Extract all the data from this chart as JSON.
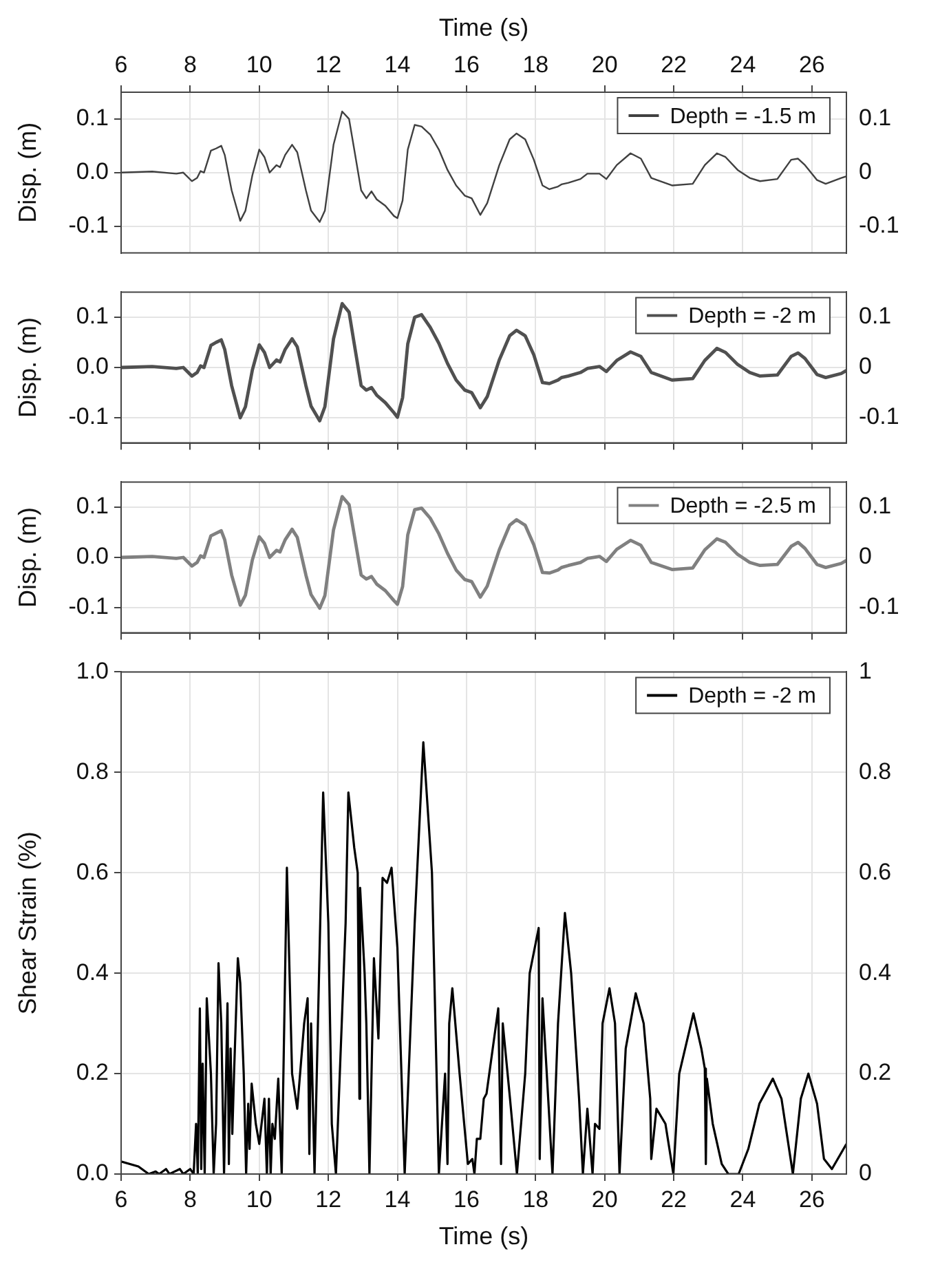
{
  "chart_data": [
    {
      "type": "line",
      "xlabel": "Time (s)",
      "ylabel": "Disp. (m)",
      "xlim": [
        6,
        27
      ],
      "xticks": [
        6,
        8,
        10,
        12,
        14,
        16,
        18,
        20,
        22,
        24,
        26
      ],
      "ylim": [
        -0.15,
        0.15
      ],
      "yticks": [
        {
          "value": -0.1,
          "label": "-0.1"
        },
        {
          "value": 0,
          "label": "0.0"
        },
        {
          "value": 0.1,
          "label": "0.1"
        }
      ],
      "y2lim": [
        -0.15,
        0.15
      ],
      "y2ticks": [
        -0.1,
        0,
        0.1
      ],
      "grid": true,
      "legend": "top right",
      "x": [
        6,
        6.9,
        7.6,
        7.8,
        8.05,
        8.2,
        8.3,
        8.4,
        8.6,
        8.75,
        8.9,
        9.0,
        9.2,
        9.45,
        9.6,
        9.8,
        10.0,
        10.15,
        10.3,
        10.5,
        10.6,
        10.75,
        10.95,
        11.1,
        11.35,
        11.5,
        11.75,
        11.9,
        12.15,
        12.4,
        12.6,
        12.75,
        12.95,
        13.1,
        13.25,
        13.4,
        13.65,
        13.9,
        14.0,
        14.15,
        14.3,
        14.5,
        14.7,
        14.95,
        15.2,
        15.45,
        15.7,
        15.95,
        16.15,
        16.4,
        16.6,
        16.95,
        17.25,
        17.45,
        17.7,
        17.95,
        18.2,
        18.4,
        18.65,
        18.75,
        18.95,
        19.3,
        19.5,
        19.85,
        20.05,
        20.35,
        20.75,
        21.05,
        21.35,
        21.95,
        22.55,
        22.9,
        23.25,
        23.5,
        23.85,
        24.2,
        24.5,
        25.0,
        25.4,
        25.6,
        25.8,
        26.15,
        26.4,
        26.85,
        27.0
      ],
      "series": [
        {
          "name": "Depth = -1.5 m",
          "color": "#404040",
          "values": [
            0,
            0.002,
            -0.002,
            0,
            -0.016,
            -0.01,
            0.003,
            0,
            0.041,
            0.045,
            0.05,
            0.033,
            -0.033,
            -0.09,
            -0.071,
            -0.005,
            0.043,
            0.029,
            0,
            0.014,
            0.01,
            0.033,
            0.052,
            0.038,
            -0.033,
            -0.071,
            -0.092,
            -0.071,
            0.052,
            0.114,
            0.1,
            0.043,
            -0.033,
            -0.048,
            -0.035,
            -0.05,
            -0.062,
            -0.081,
            -0.085,
            -0.052,
            0.043,
            0.089,
            0.086,
            0.071,
            0.043,
            0.005,
            -0.024,
            -0.043,
            -0.048,
            -0.079,
            -0.057,
            0.014,
            0.062,
            0.073,
            0.062,
            0.024,
            -0.024,
            -0.031,
            -0.026,
            -0.022,
            -0.019,
            -0.012,
            -0.002,
            -0.002,
            -0.012,
            0.014,
            0.036,
            0.026,
            -0.01,
            -0.024,
            -0.021,
            0.014,
            0.036,
            0.029,
            0.005,
            -0.01,
            -0.016,
            -0.012,
            0.024,
            0.026,
            0.014,
            -0.014,
            -0.021,
            -0.01,
            -0.007
          ]
        }
      ]
    },
    {
      "type": "line",
      "ylabel": "Disp. (m)",
      "xlim": [
        6,
        27
      ],
      "xticks": [
        6,
        8,
        10,
        12,
        14,
        16,
        18,
        20,
        22,
        24,
        26
      ],
      "ylim": [
        -0.15,
        0.15
      ],
      "yticks": [
        {
          "value": -0.1,
          "label": "-0.1"
        },
        {
          "value": 0,
          "label": "0.0"
        },
        {
          "value": 0.1,
          "label": "0.1"
        }
      ],
      "y2lim": [
        -0.15,
        0.15
      ],
      "y2ticks": [
        -0.1,
        0,
        0.1
      ],
      "grid": true,
      "legend": "top right",
      "tick_labels": "y",
      "x": [
        6,
        6.9,
        7.6,
        7.8,
        8.05,
        8.2,
        8.3,
        8.4,
        8.6,
        8.75,
        8.9,
        9.0,
        9.2,
        9.45,
        9.6,
        9.8,
        10.0,
        10.15,
        10.3,
        10.5,
        10.6,
        10.75,
        10.95,
        11.1,
        11.35,
        11.5,
        11.75,
        11.9,
        12.15,
        12.4,
        12.6,
        12.75,
        12.95,
        13.1,
        13.25,
        13.4,
        13.65,
        13.9,
        14.0,
        14.15,
        14.3,
        14.5,
        14.7,
        14.95,
        15.2,
        15.45,
        15.7,
        15.95,
        16.15,
        16.4,
        16.6,
        16.95,
        17.25,
        17.45,
        17.7,
        17.95,
        18.2,
        18.4,
        18.65,
        18.75,
        18.95,
        19.3,
        19.5,
        19.85,
        20.05,
        20.35,
        20.75,
        21.05,
        21.35,
        21.95,
        22.55,
        22.9,
        23.25,
        23.5,
        23.85,
        24.2,
        24.5,
        25.0,
        25.4,
        25.6,
        25.8,
        26.15,
        26.4,
        26.85,
        27.0
      ],
      "series": [
        {
          "name": "Depth = -2 m",
          "color": "#505050",
          "values": [
            0,
            0.002,
            -0.002,
            0,
            -0.017,
            -0.01,
            0.003,
            0,
            0.044,
            0.05,
            0.055,
            0.036,
            -0.036,
            -0.1,
            -0.078,
            -0.005,
            0.045,
            0.03,
            0,
            0.015,
            0.011,
            0.036,
            0.057,
            0.041,
            -0.036,
            -0.077,
            -0.106,
            -0.078,
            0.057,
            0.127,
            0.11,
            0.047,
            -0.036,
            -0.045,
            -0.04,
            -0.055,
            -0.07,
            -0.09,
            -0.099,
            -0.06,
            0.047,
            0.1,
            0.105,
            0.08,
            0.048,
            0.008,
            -0.025,
            -0.045,
            -0.05,
            -0.08,
            -0.058,
            0.015,
            0.063,
            0.074,
            0.063,
            0.025,
            -0.03,
            -0.032,
            -0.025,
            -0.02,
            -0.017,
            -0.01,
            -0.002,
            0.002,
            -0.008,
            0.014,
            0.031,
            0.022,
            -0.01,
            -0.025,
            -0.022,
            0.014,
            0.038,
            0.03,
            0.006,
            -0.01,
            -0.017,
            -0.015,
            0.022,
            0.029,
            0.018,
            -0.014,
            -0.02,
            -0.012,
            -0.006
          ]
        }
      ]
    },
    {
      "type": "line",
      "ylabel": "Disp. (m)",
      "xlim": [
        6,
        27
      ],
      "xticks": [
        6,
        8,
        10,
        12,
        14,
        16,
        18,
        20,
        22,
        24,
        26
      ],
      "ylim": [
        -0.15,
        0.15
      ],
      "yticks": [
        {
          "value": -0.1,
          "label": "-0.1"
        },
        {
          "value": 0,
          "label": "0.0"
        },
        {
          "value": 0.1,
          "label": "0.1"
        }
      ],
      "y2lim": [
        -0.15,
        0.15
      ],
      "y2ticks": [
        -0.1,
        0,
        0.1
      ],
      "grid": true,
      "legend": "top right",
      "tick_labels": "y",
      "x": [
        6,
        6.9,
        7.6,
        7.8,
        8.05,
        8.2,
        8.3,
        8.4,
        8.6,
        8.75,
        8.9,
        9.0,
        9.2,
        9.45,
        9.6,
        9.8,
        10.0,
        10.15,
        10.3,
        10.5,
        10.6,
        10.75,
        10.95,
        11.1,
        11.35,
        11.5,
        11.75,
        11.9,
        12.15,
        12.4,
        12.6,
        12.75,
        12.95,
        13.1,
        13.25,
        13.4,
        13.65,
        13.9,
        14.0,
        14.15,
        14.3,
        14.5,
        14.7,
        14.95,
        15.2,
        15.45,
        15.7,
        15.95,
        16.15,
        16.4,
        16.6,
        16.95,
        17.25,
        17.45,
        17.7,
        17.95,
        18.2,
        18.4,
        18.65,
        18.75,
        18.95,
        19.3,
        19.5,
        19.85,
        20.05,
        20.35,
        20.75,
        21.05,
        21.35,
        21.95,
        22.55,
        22.9,
        23.25,
        23.5,
        23.85,
        24.2,
        24.5,
        25.0,
        25.4,
        25.6,
        25.8,
        26.15,
        26.4,
        26.85,
        27.0
      ],
      "series": [
        {
          "name": "Depth = -2.5 m",
          "color": "#808080",
          "values": [
            0,
            0.002,
            -0.002,
            0,
            -0.017,
            -0.01,
            0.003,
            0,
            0.043,
            0.048,
            0.053,
            0.035,
            -0.035,
            -0.095,
            -0.075,
            -0.005,
            0.041,
            0.028,
            0,
            0.014,
            0.011,
            0.035,
            0.056,
            0.04,
            -0.035,
            -0.074,
            -0.101,
            -0.076,
            0.055,
            0.121,
            0.105,
            0.045,
            -0.035,
            -0.043,
            -0.038,
            -0.053,
            -0.066,
            -0.086,
            -0.093,
            -0.058,
            0.045,
            0.095,
            0.098,
            0.078,
            0.047,
            0.008,
            -0.025,
            -0.044,
            -0.048,
            -0.079,
            -0.057,
            0.015,
            0.064,
            0.075,
            0.064,
            0.025,
            -0.03,
            -0.031,
            -0.025,
            -0.02,
            -0.016,
            -0.01,
            -0.002,
            0.002,
            -0.008,
            0.016,
            0.034,
            0.024,
            -0.01,
            -0.024,
            -0.021,
            0.015,
            0.037,
            0.03,
            0.006,
            -0.01,
            -0.016,
            -0.014,
            0.022,
            0.03,
            0.018,
            -0.014,
            -0.02,
            -0.012,
            -0.006
          ]
        }
      ]
    },
    {
      "type": "line",
      "xlabel": "Time (s)",
      "ylabel": "Shear Strain (%)",
      "xlim": [
        6,
        27
      ],
      "xticks": [
        6,
        8,
        10,
        12,
        14,
        16,
        18,
        20,
        22,
        24,
        26
      ],
      "ylim": [
        0,
        1
      ],
      "yticks": [
        {
          "value": 0,
          "label": "0.0"
        },
        0.2,
        0.4,
        0.6,
        0.8,
        {
          "value": 1,
          "label": "1.0"
        }
      ],
      "y2lim": [
        0,
        1
      ],
      "y2ticks": [
        0,
        0.2,
        0.4,
        0.6,
        0.8,
        1
      ],
      "grid": true,
      "legend": "top right",
      "x": [
        6,
        6.5,
        6.8,
        7.0,
        7.1,
        7.3,
        7.4,
        7.7,
        7.8,
        8.0,
        8.1,
        8.17,
        8.22,
        8.28,
        8.32,
        8.36,
        8.42,
        8.48,
        8.6,
        8.68,
        8.75,
        8.82,
        8.9,
        8.98,
        9.08,
        9.12,
        9.17,
        9.22,
        9.27,
        9.38,
        9.45,
        9.55,
        9.62,
        9.68,
        9.72,
        9.78,
        9.9,
        10.0,
        10.15,
        10.22,
        10.28,
        10.33,
        10.38,
        10.45,
        10.55,
        10.65,
        10.8,
        10.95,
        11.1,
        11.3,
        11.4,
        11.45,
        11.5,
        11.6,
        11.85,
        12.0,
        12.1,
        12.22,
        12.5,
        12.58,
        12.75,
        12.85,
        12.9,
        12.92,
        13.05,
        13.1,
        13.19,
        13.32,
        13.45,
        13.57,
        13.7,
        13.83,
        14.0,
        14.21,
        14.5,
        14.75,
        15.0,
        15.2,
        15.38,
        15.45,
        15.5,
        15.59,
        15.8,
        16.04,
        16.17,
        16.23,
        16.3,
        16.4,
        16.5,
        16.58,
        16.92,
        17.0,
        17.05,
        17.26,
        17.46,
        17.7,
        17.83,
        18.09,
        18.12,
        18.2,
        18.49,
        18.65,
        18.85,
        19.03,
        19.26,
        19.37,
        19.5,
        19.65,
        19.72,
        19.85,
        19.94,
        20.14,
        20.3,
        20.43,
        20.61,
        20.9,
        21.13,
        21.32,
        21.35,
        21.5,
        21.76,
        21.99,
        22.16,
        22.57,
        22.8,
        22.9,
        22.93,
        22.96,
        23.13,
        23.39,
        23.58,
        23.88,
        24.16,
        24.48,
        24.87,
        25.12,
        25.45,
        25.68,
        25.9,
        26.15,
        26.35,
        26.58,
        27
      ],
      "series": [
        {
          "name": "Depth = -2 m",
          "color": "#000000",
          "values": [
            0.025,
            0.015,
            0,
            0.005,
            0,
            0.01,
            0,
            0.01,
            0,
            0.01,
            0,
            0.1,
            0,
            0.33,
            0.01,
            0.22,
            0,
            0.35,
            0.2,
            0,
            0.1,
            0.42,
            0.3,
            0,
            0.34,
            0.02,
            0.25,
            0.08,
            0.2,
            0.43,
            0.38,
            0.2,
            0,
            0.14,
            0.05,
            0.18,
            0.1,
            0.06,
            0.15,
            0,
            0.15,
            0,
            0.1,
            0.07,
            0.19,
            0,
            0.61,
            0.2,
            0.13,
            0.3,
            0.35,
            0.04,
            0.3,
            0,
            0.76,
            0.5,
            0.1,
            0,
            0.5,
            0.76,
            0.65,
            0.6,
            0.15,
            0.57,
            0.4,
            0.3,
            0,
            0.43,
            0.27,
            0.59,
            0.58,
            0.61,
            0.45,
            0,
            0.5,
            0.86,
            0.6,
            0,
            0.2,
            0.02,
            0.3,
            0.37,
            0.2,
            0.02,
            0.03,
            0,
            0.07,
            0.07,
            0.15,
            0.16,
            0.33,
            0.02,
            0.3,
            0.15,
            0,
            0.2,
            0.4,
            0.49,
            0.03,
            0.35,
            0,
            0.3,
            0.52,
            0.4,
            0.15,
            0,
            0.13,
            0,
            0.1,
            0.09,
            0.3,
            0.37,
            0.3,
            0,
            0.25,
            0.36,
            0.3,
            0.15,
            0.03,
            0.13,
            0.1,
            0,
            0.2,
            0.32,
            0.25,
            0.21,
            0.02,
            0.19,
            0.1,
            0.02,
            0,
            0,
            0.05,
            0.14,
            0.19,
            0.15,
            0,
            0.15,
            0.2,
            0.14,
            0.03,
            0.01,
            0.06
          ]
        }
      ]
    }
  ]
}
